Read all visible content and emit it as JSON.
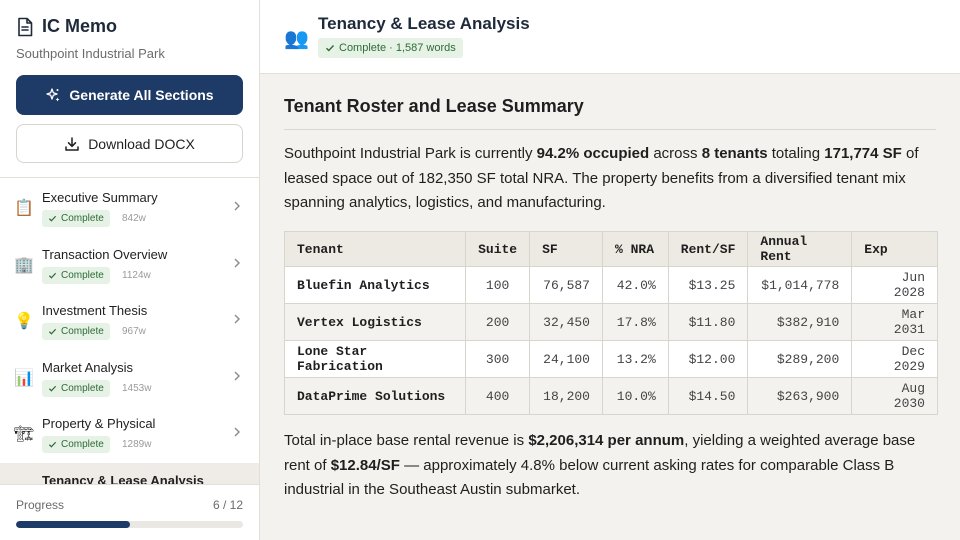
{
  "app": {
    "title": "IC Memo",
    "subtitle": "Southpoint Industrial Park",
    "generate_label": "Generate All Sections",
    "download_label": "Download DOCX"
  },
  "sections": [
    {
      "emoji": "📋",
      "title": "Executive Summary",
      "status": "Complete",
      "words": "842w"
    },
    {
      "emoji": "🏢",
      "title": "Transaction Overview",
      "status": "Complete",
      "words": "1124w"
    },
    {
      "emoji": "💡",
      "title": "Investment Thesis",
      "status": "Complete",
      "words": "967w"
    },
    {
      "emoji": "📊",
      "title": "Market Analysis",
      "status": "Complete",
      "words": "1453w"
    },
    {
      "emoji": "🏗",
      "title": "Property & Physical",
      "status": "Complete",
      "words": "1289w"
    },
    {
      "emoji": "",
      "title": "Tenancy & Lease Analysis",
      "status": "",
      "words": ""
    }
  ],
  "progress": {
    "label": "Progress",
    "count": "6 / 12",
    "fraction": 0.5
  },
  "header": {
    "emoji": "👥",
    "title": "Tenancy & Lease Analysis",
    "badge": "Complete · 1,587 words"
  },
  "content": {
    "heading": "Tenant Roster and Lease Summary",
    "p1": {
      "a": "Southpoint Industrial Park is currently ",
      "b": "94.2% occupied",
      "c": " across ",
      "d": "8 tenants",
      "e": " totaling ",
      "f": "171,774 SF",
      "g": " of leased space out of 182,350 SF total NRA. The property benefits from a diversified tenant mix spanning analytics, logistics, and manufacturing."
    },
    "table": {
      "headers": [
        "Tenant",
        "Suite",
        "SF",
        "% NRA",
        "Rent/SF",
        "Annual Rent",
        "Exp"
      ],
      "rows": [
        [
          "Bluefin Analytics",
          "100",
          "76,587",
          "42.0%",
          "$13.25",
          "$1,014,778",
          "Jun 2028"
        ],
        [
          "Vertex Logistics",
          "200",
          "32,450",
          "17.8%",
          "$11.80",
          "$382,910",
          "Mar 2031"
        ],
        [
          "Lone Star Fabrication",
          "300",
          "24,100",
          "13.2%",
          "$12.00",
          "$289,200",
          "Dec 2029"
        ],
        [
          "DataPrime Solutions",
          "400",
          "18,200",
          "10.0%",
          "$14.50",
          "$263,900",
          "Aug 2030"
        ]
      ]
    },
    "p2": {
      "a": "Total in-place base rental revenue is ",
      "b": "$2,206,314 per annum",
      "c": ", yielding a weighted average base rent of ",
      "d": "$12.84/SF",
      "e": " — approximately 4.8% below current asking rates for comparable Class B industrial in the Southeast Austin submarket."
    }
  },
  "colors": {
    "accent": "#1e3a66",
    "success_bg": "#e6f2e6",
    "success_text": "#2f6b36"
  }
}
